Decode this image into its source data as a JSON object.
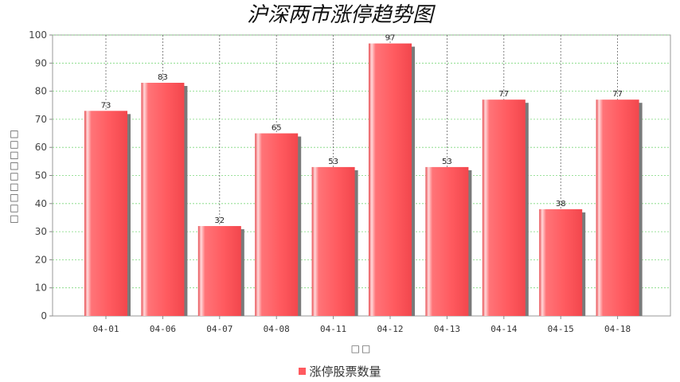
{
  "chart_data": {
    "type": "bar",
    "title": "沪深两市涨停趋势图",
    "xlabel": "□□",
    "ylabel": "□□□□□□□□□",
    "categories": [
      "04-01",
      "04-06",
      "04-07",
      "04-08",
      "04-11",
      "04-12",
      "04-13",
      "04-14",
      "04-15",
      "04-18"
    ],
    "series": [
      {
        "name": "涨停股票数量",
        "values": [
          73,
          83,
          32,
          65,
          53,
          97,
          53,
          77,
          38,
          77
        ],
        "color": "#ff5a5f"
      }
    ],
    "ylim": [
      0,
      100
    ],
    "yticks": [
      0,
      10,
      20,
      30,
      40,
      50,
      60,
      70,
      80,
      90,
      100
    ],
    "grid": true,
    "legend_position": "bottom",
    "data_labels": true
  }
}
